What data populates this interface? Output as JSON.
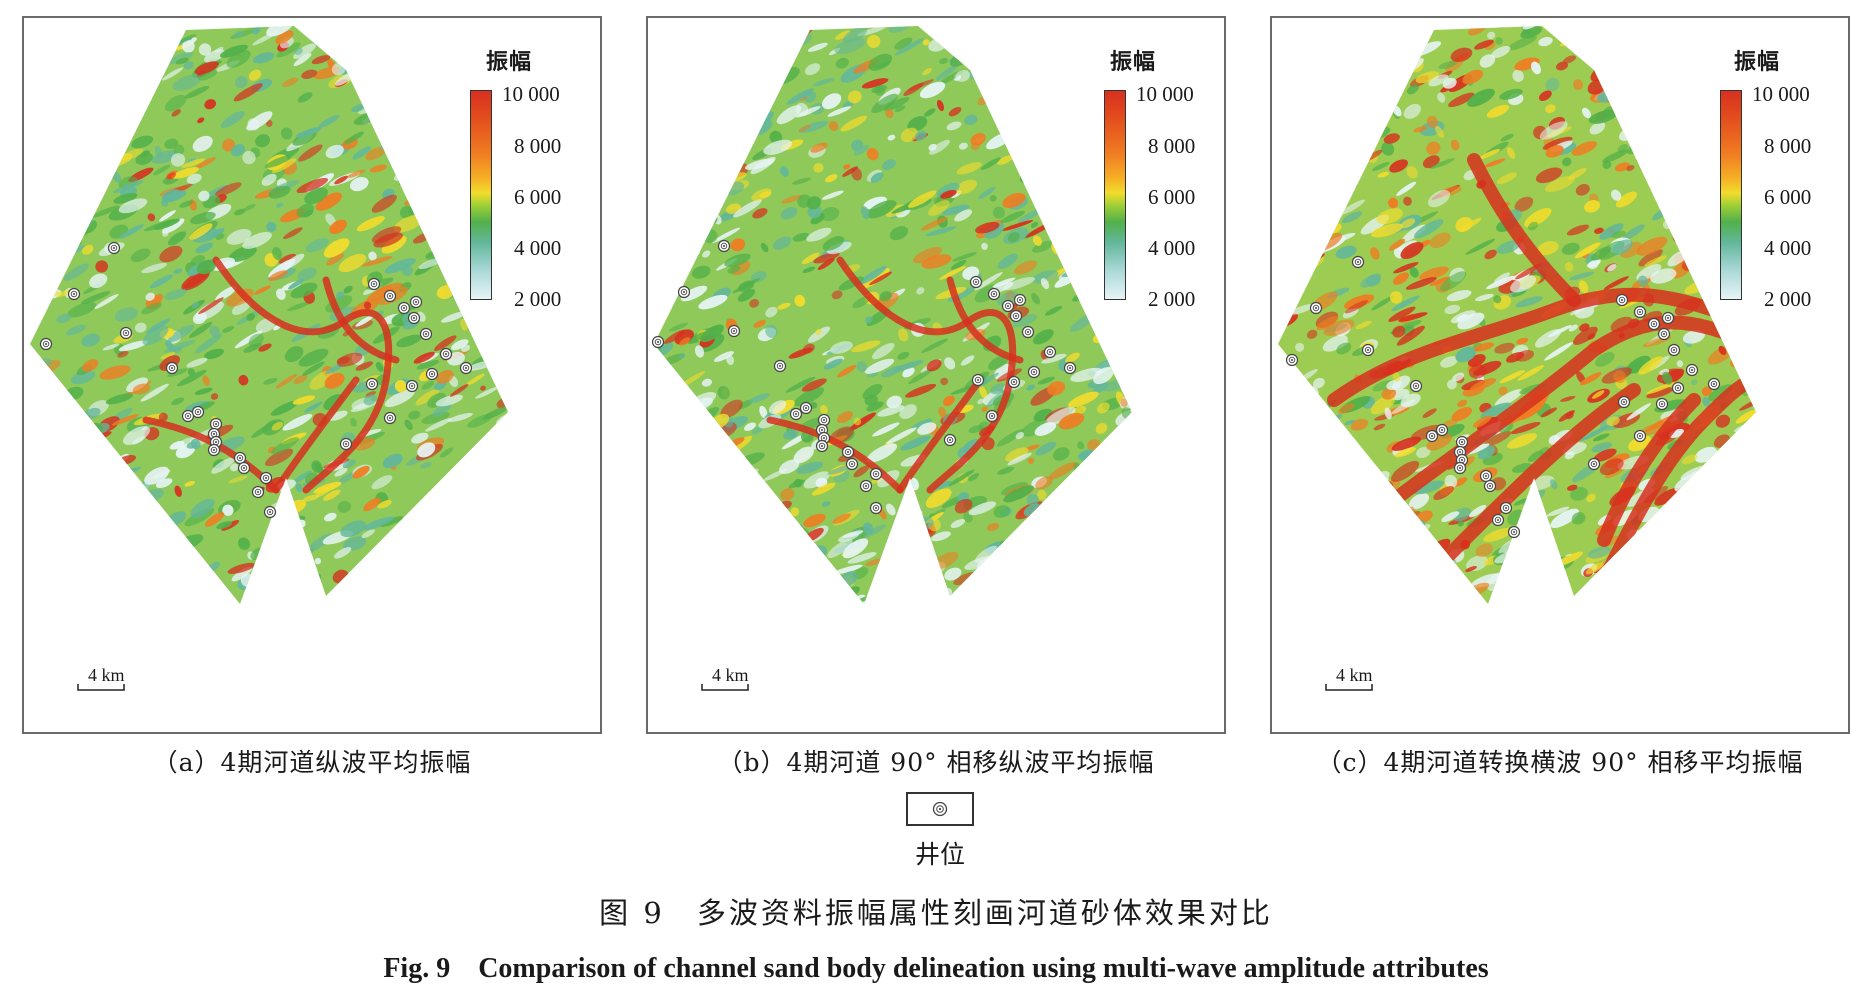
{
  "colorbar": {
    "title": "振幅",
    "ticks": [
      "10 000",
      "8 000",
      "6 000",
      "4 000",
      "2 000"
    ]
  },
  "scale_bar_label": "4 km",
  "panels": [
    {
      "id": "a",
      "caption": "（a）4期河道纵波平均振幅",
      "tone": "mixed"
    },
    {
      "id": "b",
      "caption": "（b）4期河道 90°  相移纵波平均振幅",
      "tone": "mixed"
    },
    {
      "id": "c",
      "caption": "（c）4期河道转换横波 90°  相移平均振幅",
      "tone": "hot"
    }
  ],
  "legend": {
    "symbol": "well-icon",
    "label": "井位"
  },
  "figure": {
    "title_cn": "图 9　多波资料振幅属性刻画河道砂体效果对比",
    "title_en": "Fig. 9　Comparison of channel sand body delineation using multi-wave amplitude attributes"
  },
  "colors": {
    "high": "#d7301f",
    "orange": "#f07c22",
    "yellow": "#f3dc2c",
    "green": "#52b04a",
    "teal": "#62b79b",
    "low": "#e7f4f6"
  }
}
